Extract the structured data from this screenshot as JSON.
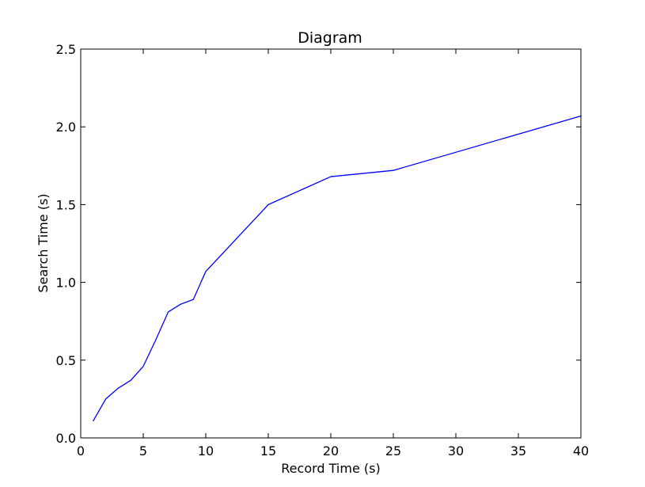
{
  "chart_data": {
    "type": "line",
    "title": "Diagram",
    "xlabel": "Record Time (s)",
    "ylabel": "Search Time (s)",
    "xlim": [
      0,
      40
    ],
    "ylim": [
      0,
      2.5
    ],
    "xticks": [
      0,
      5,
      10,
      15,
      20,
      25,
      30,
      35,
      40
    ],
    "yticks": [
      0.0,
      0.5,
      1.0,
      1.5,
      2.0,
      2.5
    ],
    "xtick_labels": [
      "0",
      "5",
      "10",
      "15",
      "20",
      "25",
      "30",
      "35",
      "40"
    ],
    "ytick_labels": [
      "0.0",
      "0.5",
      "1.0",
      "1.5",
      "2.0",
      "2.5"
    ],
    "grid": false,
    "series": [
      {
        "color": "#0000ff",
        "x": [
          1,
          2,
          3,
          4,
          5,
          6,
          7,
          8,
          9,
          10,
          15,
          20,
          25,
          40
        ],
        "y": [
          0.11,
          0.25,
          0.32,
          0.37,
          0.46,
          0.63,
          0.81,
          0.86,
          0.89,
          1.07,
          1.5,
          1.68,
          1.72,
          2.07
        ]
      }
    ]
  }
}
